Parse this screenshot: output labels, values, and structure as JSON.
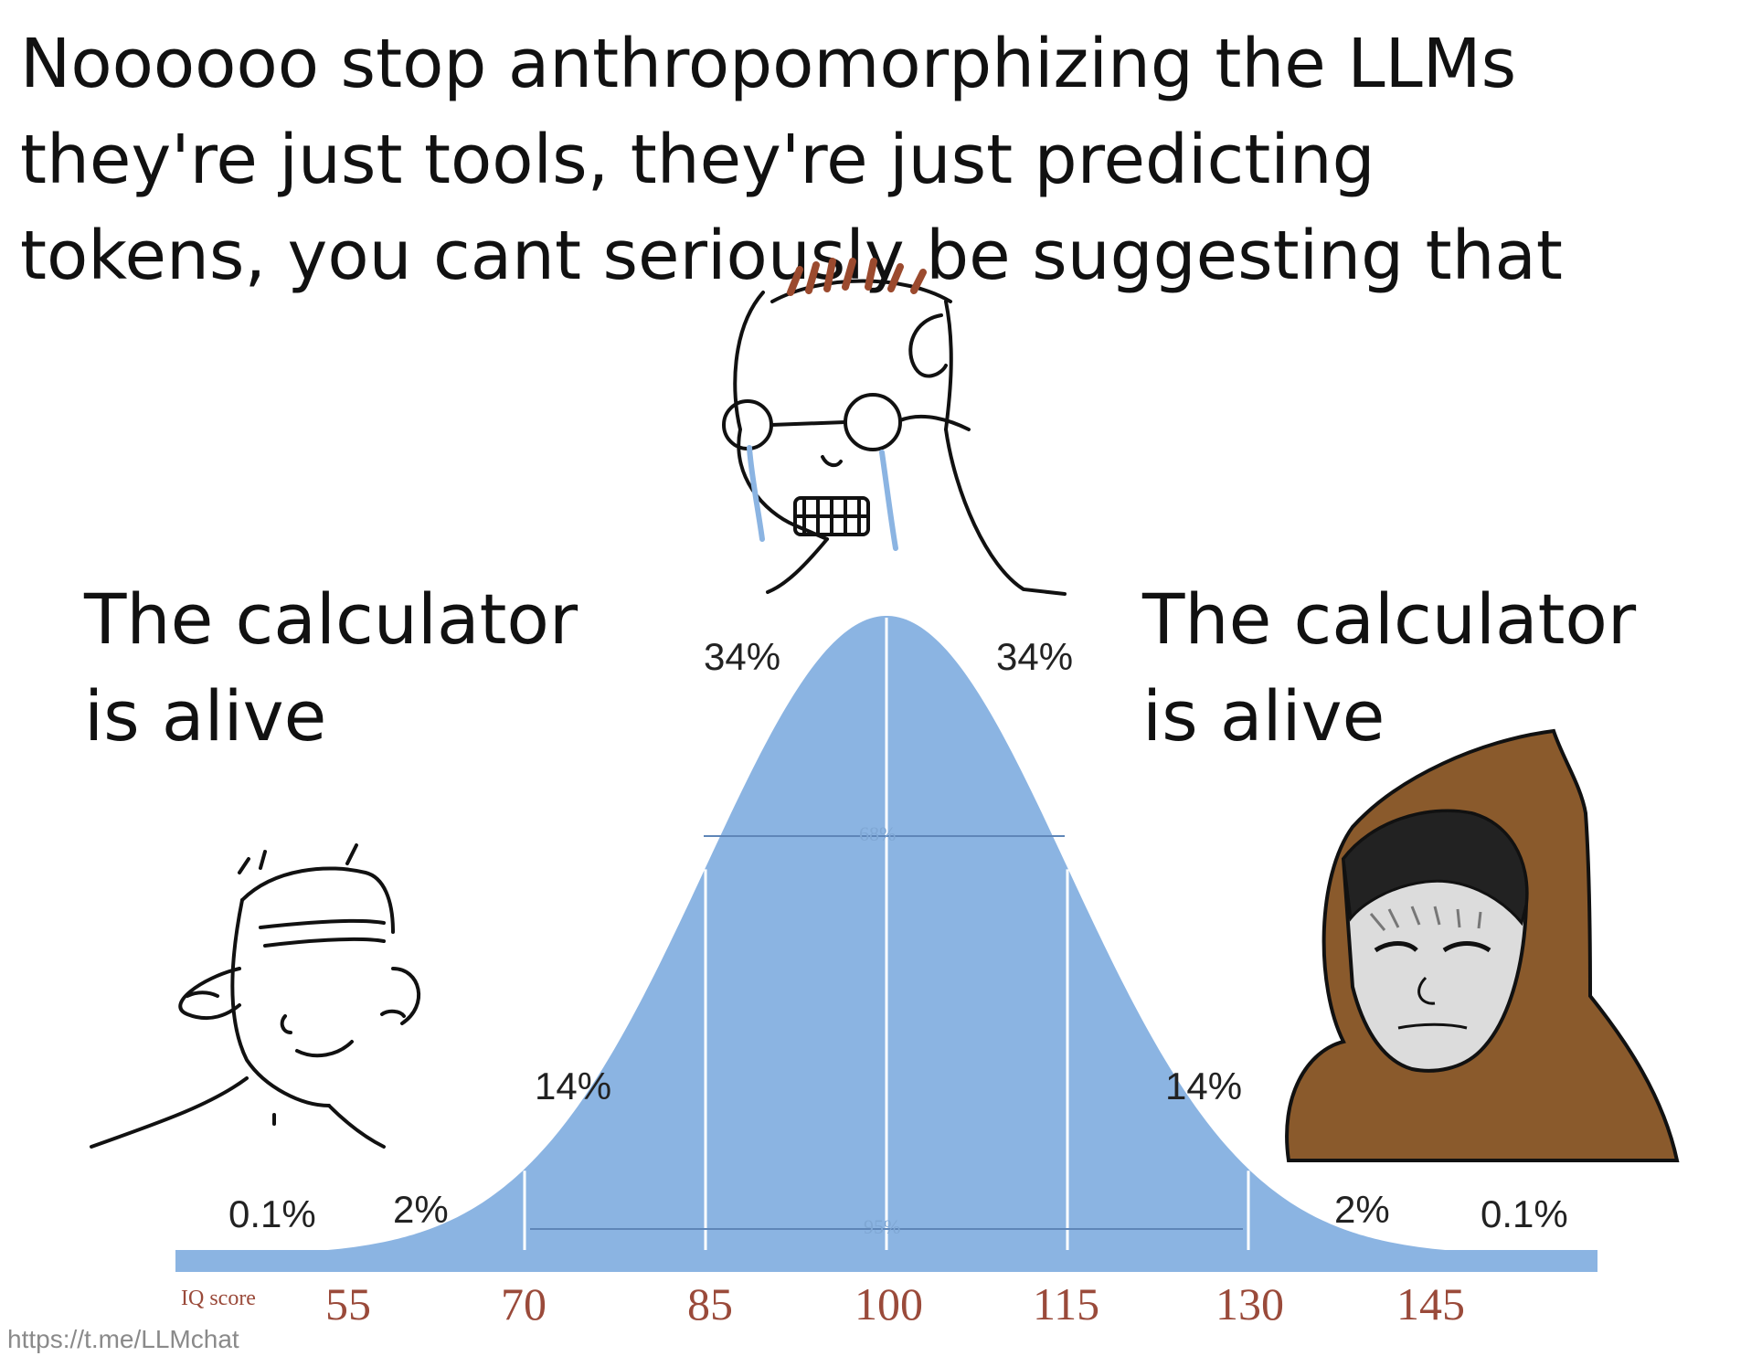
{
  "caption": {
    "lines": [
      "Noooooo stop anthropomorphizing the LLMs",
      "they're just tools, they're just predicting",
      "tokens, you cant seriously be suggesting that"
    ]
  },
  "left_label": {
    "lines": [
      "The calculator",
      "is alive"
    ]
  },
  "right_label": {
    "lines": [
      "The calculator",
      "is alive"
    ]
  },
  "chart": {
    "fill_color": "#8bb4e2",
    "tick_color": "#9a4a3a",
    "percent_labels": {
      "far_left": "0.1%",
      "left_2": "2%",
      "left_14": "14%",
      "left_34": "34%",
      "right_34": "34%",
      "right_14": "14%",
      "right_2": "2%",
      "far_right": "0.1%"
    },
    "band_68": "68%",
    "band_95": "95%",
    "axis_title": "IQ score",
    "ticks": [
      "55",
      "70",
      "85",
      "100",
      "115",
      "130",
      "145"
    ]
  },
  "characters": {
    "left": "wojak-simple-face",
    "center": "crying-glasses-wojak",
    "right": "hooded-wojak"
  },
  "watermark": "https://t.me/LLMchat"
}
